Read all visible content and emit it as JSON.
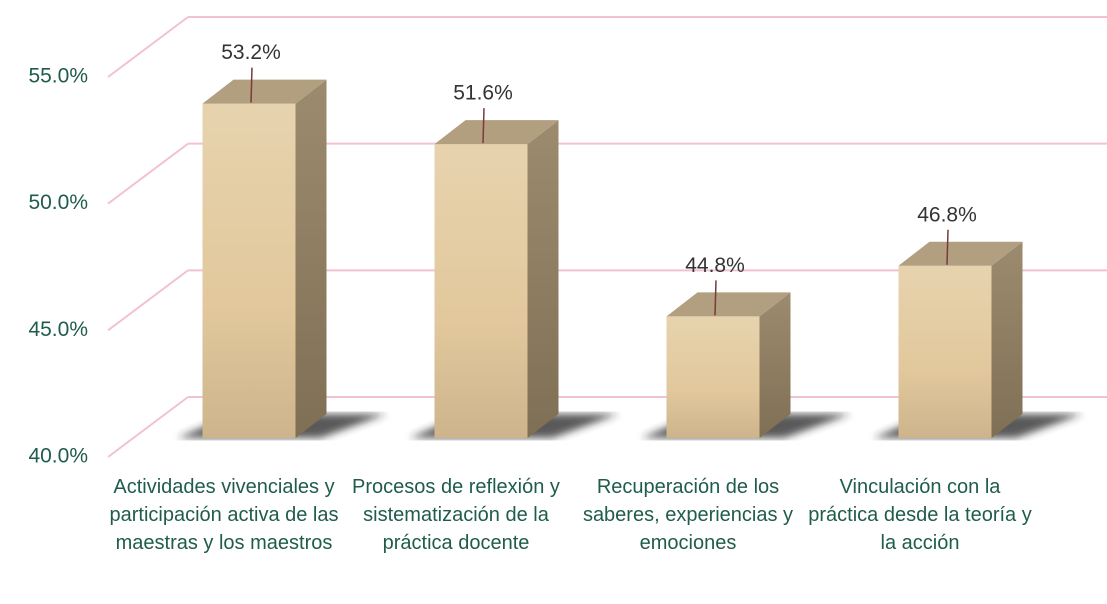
{
  "chart_data": {
    "type": "bar3d",
    "categories": [
      "Actividades vivenciales y participación activa de las maestras y los maestros",
      "Procesos de reflexión y sistematización de la práctica docente",
      "Recuperación de los saberes, experiencias y emociones",
      "Vinculación con la práctica desde la teoría y la acción"
    ],
    "values": [
      53.2,
      51.6,
      44.8,
      46.8
    ],
    "value_labels": [
      "53.2%",
      "51.6%",
      "44.8%",
      "46.8%"
    ],
    "color": "#dcc49c",
    "ylim": [
      40,
      55
    ],
    "yticks": [
      {
        "value": 40,
        "label": "40.0%"
      },
      {
        "value": 45,
        "label": "45.0%"
      },
      {
        "value": 50,
        "label": "50.0%"
      },
      {
        "value": 55,
        "label": "55.0%"
      }
    ],
    "grid": true
  }
}
